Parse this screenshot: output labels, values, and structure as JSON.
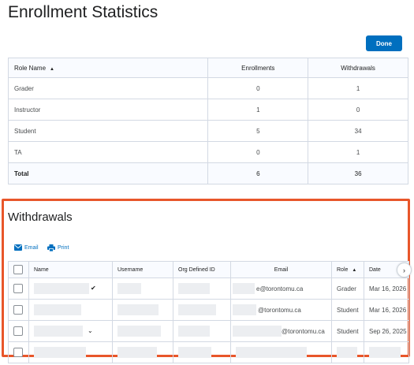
{
  "page": {
    "title": "Enrollment Statistics",
    "done_label": "Done"
  },
  "stats_table": {
    "headers": {
      "role_name": "Role Name",
      "enrollments": "Enrollments",
      "withdrawals": "Withdrawals"
    },
    "sort_indicator": "▲",
    "rows": [
      {
        "role": "Grader",
        "enrollments": "0",
        "withdrawals": "1"
      },
      {
        "role": "Instructor",
        "enrollments": "1",
        "withdrawals": "0"
      },
      {
        "role": "Student",
        "enrollments": "5",
        "withdrawals": "34"
      },
      {
        "role": "TA",
        "enrollments": "0",
        "withdrawals": "1"
      }
    ],
    "total": {
      "label": "Total",
      "enrollments": "6",
      "withdrawals": "36"
    }
  },
  "withdrawals": {
    "title": "Withdrawals",
    "actions": {
      "email": "Email",
      "print": "Print"
    },
    "headers": {
      "name": "Name",
      "username": "Username",
      "org_id": "Org Defined ID",
      "email": "Email",
      "role": "Role",
      "date": "Date"
    },
    "role_sort_indicator": "▲",
    "rows": [
      {
        "email": "e@torontomu.ca",
        "role": "Grader",
        "date": "Mar 16, 2026"
      },
      {
        "email": "@torontomu.ca",
        "role": "Student",
        "date": "Mar 16, 2026"
      },
      {
        "email": "@torontomu.ca",
        "role": "Student",
        "date": "Sep 26, 2025"
      }
    ]
  },
  "colors": {
    "accent": "#006fbf",
    "highlight": "#e8562a"
  },
  "icons": {
    "email": "envelope-icon",
    "print": "printer-icon",
    "scroll": "chevron-right-icon"
  }
}
